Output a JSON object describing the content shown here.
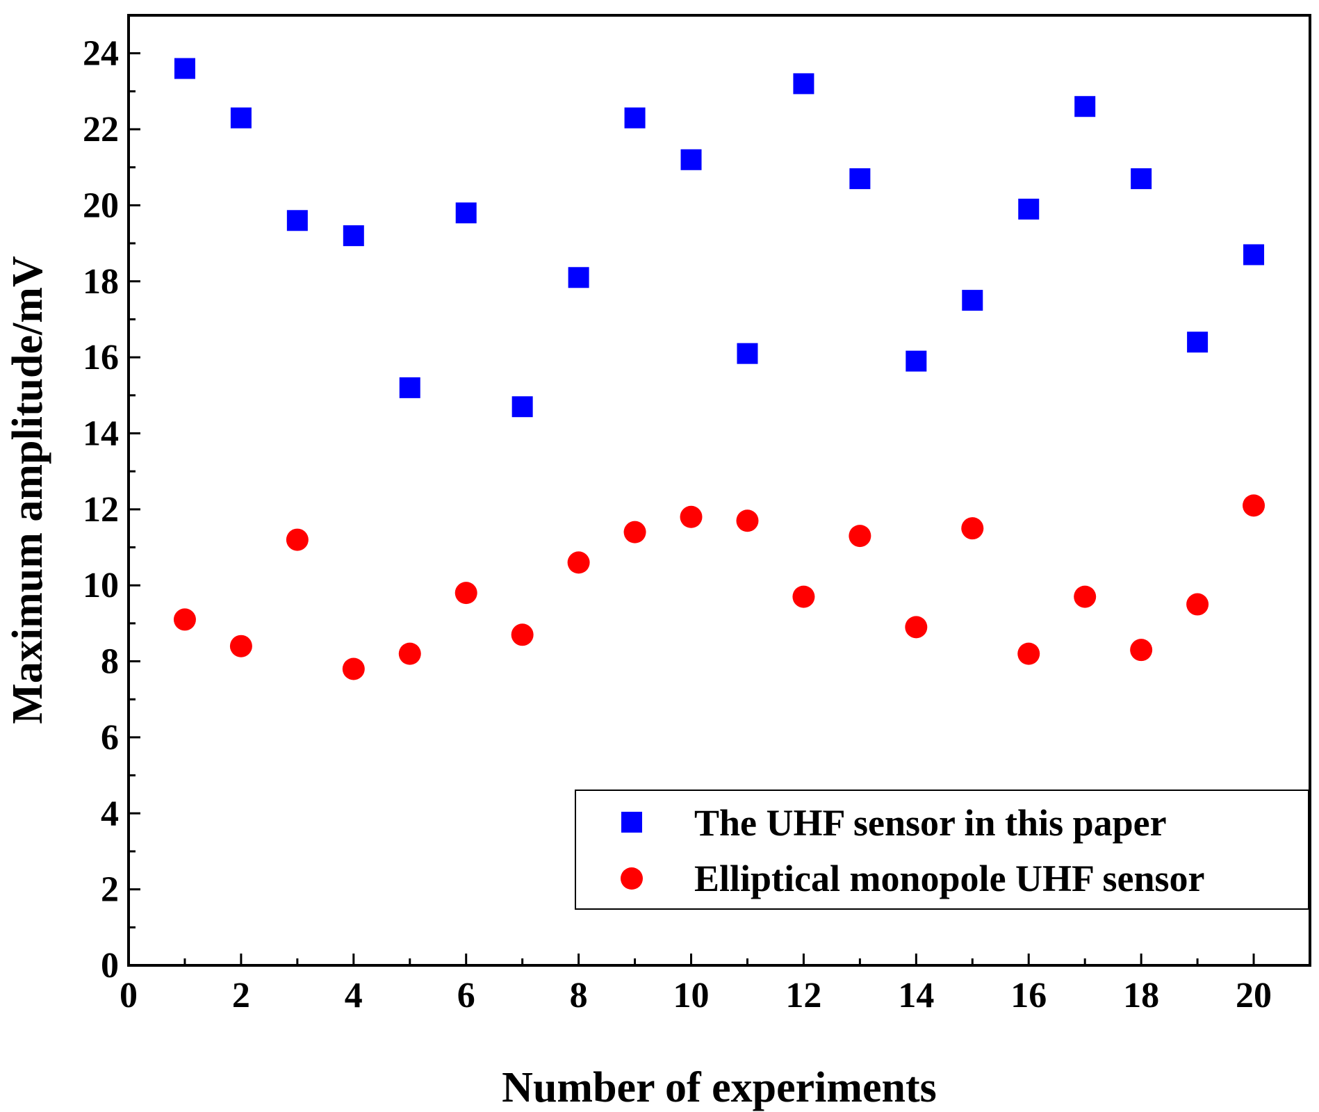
{
  "chart_data": {
    "type": "scatter",
    "title": "",
    "xlabel": "Number of experiments",
    "ylabel": "Maximum amplitude/mV",
    "xlim": [
      0,
      21
    ],
    "ylim": [
      0,
      25
    ],
    "x_ticks": [
      0,
      2,
      4,
      6,
      8,
      10,
      12,
      14,
      16,
      18,
      20
    ],
    "y_ticks": [
      0,
      2,
      4,
      6,
      8,
      10,
      12,
      14,
      16,
      18,
      20,
      22,
      24
    ],
    "x_tick_labels": [
      "0",
      "2",
      "4",
      "6",
      "8",
      "10",
      "12",
      "14",
      "16",
      "18",
      "20"
    ],
    "y_tick_labels": [
      "0",
      "2",
      "4",
      "6",
      "8",
      "10",
      "12",
      "14",
      "16",
      "18",
      "20",
      "22",
      "24"
    ],
    "grid": false,
    "legend_position": "bottom-right",
    "series": [
      {
        "name": "The UHF sensor in this paper",
        "marker": "square",
        "color": "#0000ff",
        "x": [
          1,
          2,
          3,
          4,
          5,
          6,
          7,
          8,
          9,
          10,
          11,
          12,
          13,
          14,
          15,
          16,
          17,
          18,
          19,
          20
        ],
        "values": [
          23.6,
          22.3,
          19.6,
          19.2,
          15.2,
          19.8,
          14.7,
          18.1,
          22.3,
          21.2,
          16.1,
          23.2,
          20.7,
          15.9,
          17.5,
          19.9,
          22.6,
          20.7,
          16.4,
          18.7
        ]
      },
      {
        "name": "Elliptical monopole UHF sensor",
        "marker": "circle",
        "color": "#ff0000",
        "x": [
          1,
          2,
          3,
          4,
          5,
          6,
          7,
          8,
          9,
          10,
          11,
          12,
          13,
          14,
          15,
          16,
          17,
          18,
          19,
          20
        ],
        "values": [
          9.1,
          8.4,
          11.2,
          7.8,
          8.2,
          9.8,
          8.7,
          10.6,
          11.4,
          11.8,
          11.7,
          9.7,
          11.3,
          8.9,
          11.5,
          8.2,
          9.7,
          8.3,
          9.5,
          12.1
        ]
      }
    ]
  }
}
